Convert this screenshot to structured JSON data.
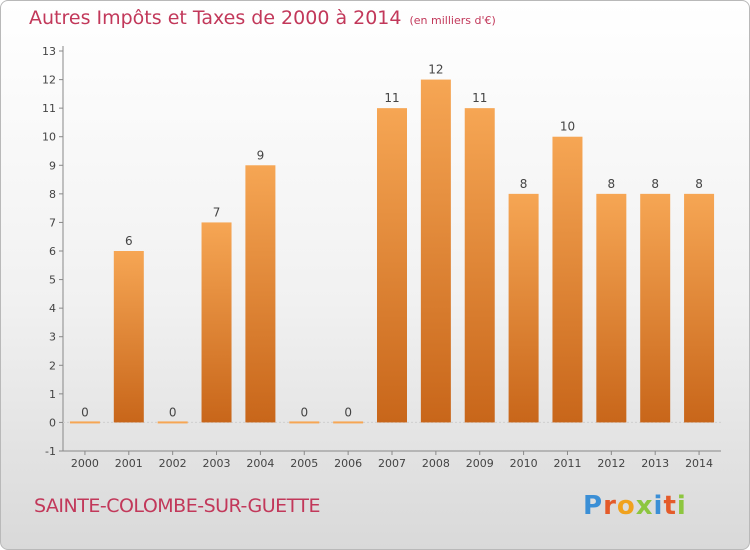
{
  "header": {
    "title": "Autres Impôts et Taxes de 2000 à 2014",
    "unit": "(en milliers d'€)"
  },
  "footer": {
    "commune": "SAINTE-COLOMBE-SUR-GUETTE",
    "logo_letters": [
      {
        "ch": "P",
        "color": "#3b8fd6"
      },
      {
        "ch": "r",
        "color": "#e45b2a"
      },
      {
        "ch": "o",
        "color": "#f0a21e"
      },
      {
        "ch": "x",
        "color": "#8dc63f"
      },
      {
        "ch": "i",
        "color": "#3b8fd6"
      },
      {
        "ch": "t",
        "color": "#e45b2a"
      },
      {
        "ch": "i",
        "color": "#8dc63f"
      }
    ]
  },
  "chart_data": {
    "type": "bar",
    "title": "Autres Impôts et Taxes de 2000 à 2014",
    "subtitle": "(en milliers d'€)",
    "categories": [
      "2000",
      "2001",
      "2002",
      "2003",
      "2004",
      "2005",
      "2006",
      "2007",
      "2008",
      "2009",
      "2010",
      "2011",
      "2012",
      "2013",
      "2014"
    ],
    "values": [
      0,
      6,
      0,
      7,
      9,
      0,
      0,
      11,
      12,
      11,
      8,
      10,
      8,
      8,
      8
    ],
    "data_labels": [
      "0",
      "6",
      "0",
      "7",
      "9",
      "0",
      "0",
      "11",
      "12",
      "11",
      "8",
      "10",
      "8",
      "8",
      "8"
    ],
    "yticks": [
      "-1",
      "0",
      "1",
      "2",
      "3",
      "4",
      "5",
      "6",
      "7",
      "8",
      "9",
      "10",
      "11",
      "12",
      "13"
    ],
    "ylim": [
      -1,
      13
    ],
    "grid": false,
    "bar_color_top": "#f6a654",
    "bar_color_bottom": "#c8661a"
  }
}
